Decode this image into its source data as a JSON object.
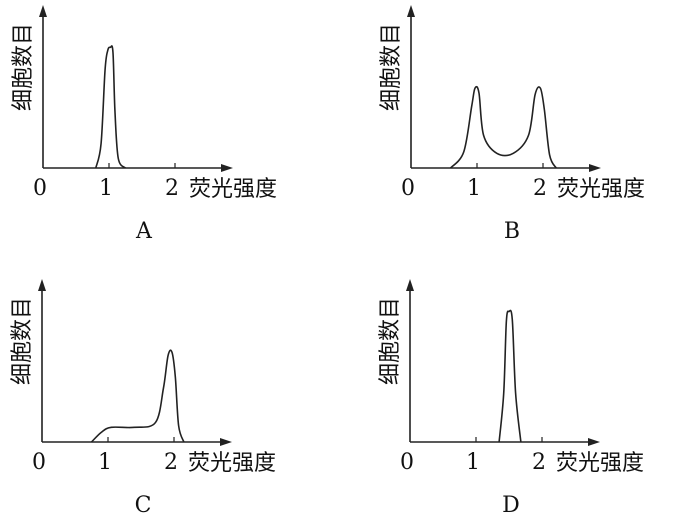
{
  "chart_data": [
    {
      "type": "line",
      "panel_label": "A",
      "xlabel": "荧光强度",
      "ylabel": "细胞数目",
      "x_ticks": [
        "0",
        "1",
        "2"
      ],
      "xlim": [
        0,
        2.8
      ],
      "ylim": [
        0,
        1
      ],
      "points": [
        [
          0.8,
          0
        ],
        [
          0.88,
          0.15
        ],
        [
          0.94,
          0.6
        ],
        [
          0.98,
          0.72
        ],
        [
          1.02,
          0.74
        ],
        [
          1.06,
          0.71
        ],
        [
          1.09,
          0.35
        ],
        [
          1.14,
          0.06
        ],
        [
          1.25,
          0
        ]
      ]
    },
    {
      "type": "line",
      "panel_label": "B",
      "xlabel": "荧光强度",
      "ylabel": "细胞数目",
      "x_ticks": [
        "0",
        "1",
        "2"
      ],
      "xlim": [
        0,
        2.8
      ],
      "ylim": [
        0,
        1
      ],
      "points": [
        [
          0.6,
          0
        ],
        [
          0.8,
          0.1
        ],
        [
          0.92,
          0.38
        ],
        [
          0.97,
          0.49
        ],
        [
          1.03,
          0.46
        ],
        [
          1.1,
          0.2
        ],
        [
          1.3,
          0.09
        ],
        [
          1.55,
          0.09
        ],
        [
          1.78,
          0.2
        ],
        [
          1.88,
          0.45
        ],
        [
          1.96,
          0.49
        ],
        [
          2.02,
          0.36
        ],
        [
          2.1,
          0.08
        ],
        [
          2.2,
          0
        ]
      ]
    },
    {
      "type": "line",
      "panel_label": "C",
      "xlabel": "荧光强度",
      "ylabel": "细胞数目",
      "x_ticks": [
        "0",
        "1",
        "2"
      ],
      "xlim": [
        0,
        2.8
      ],
      "ylim": [
        0,
        1
      ],
      "points": [
        [
          0.75,
          0
        ],
        [
          0.9,
          0.06
        ],
        [
          1.05,
          0.09
        ],
        [
          1.4,
          0.09
        ],
        [
          1.72,
          0.12
        ],
        [
          1.84,
          0.33
        ],
        [
          1.91,
          0.53
        ],
        [
          1.97,
          0.55
        ],
        [
          2.02,
          0.4
        ],
        [
          2.07,
          0.1
        ],
        [
          2.15,
          0
        ]
      ]
    },
    {
      "type": "line",
      "panel_label": "D",
      "xlabel": "荧光强度",
      "ylabel": "细胞数目",
      "x_ticks": [
        "0",
        "1",
        "2"
      ],
      "xlim": [
        0,
        2.8
      ],
      "ylim": [
        0,
        1
      ],
      "points": [
        [
          1.35,
          0
        ],
        [
          1.42,
          0.3
        ],
        [
          1.46,
          0.74
        ],
        [
          1.5,
          0.8
        ],
        [
          1.55,
          0.75
        ],
        [
          1.6,
          0.3
        ],
        [
          1.68,
          0
        ]
      ]
    }
  ],
  "colors": {
    "line": "#222222"
  }
}
